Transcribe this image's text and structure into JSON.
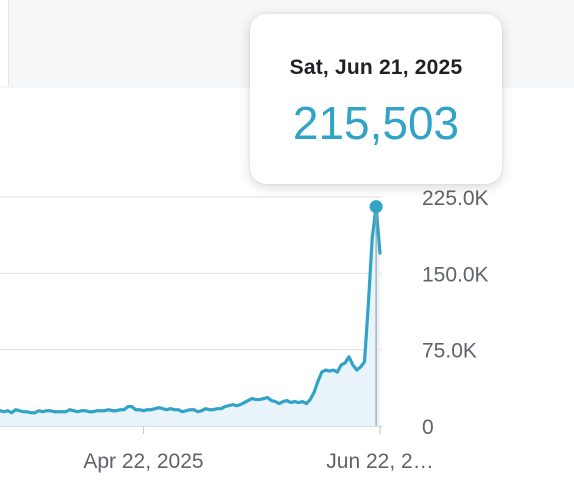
{
  "colors": {
    "series": "#30a3c6",
    "area_fill": "#e8f4fa",
    "grid": "#e0e0e0",
    "tick_text": "#5f6368",
    "tooltip_date": "#202124",
    "tooltip_value": "#30a3c6"
  },
  "tooltip": {
    "date": "Sat, Jun 21, 2025",
    "value": "215,503"
  },
  "chart_data": {
    "type": "area",
    "title": "",
    "xlabel": "",
    "ylabel": "",
    "grid": true,
    "y_axis_position": "right",
    "ylim": [
      0,
      225000
    ],
    "y_ticks": [
      {
        "value": 0,
        "label": "0"
      },
      {
        "value": 75000,
        "label": "75.0K"
      },
      {
        "value": 150000,
        "label": "150.0K"
      },
      {
        "value": 225000,
        "label": "225.0K"
      }
    ],
    "x_ticks": [
      {
        "date": "2025-04-22",
        "label": "Apr 22, 2025"
      },
      {
        "date": "2025-06-22",
        "label": "Jun 22, 2…"
      }
    ],
    "highlight": {
      "date": "2025-06-21",
      "value": 215503
    },
    "series": [
      {
        "x": [
          "2025-03-16",
          "2025-03-17",
          "2025-03-18",
          "2025-03-19",
          "2025-03-20",
          "2025-03-21",
          "2025-03-22",
          "2025-03-23",
          "2025-03-24",
          "2025-03-25",
          "2025-03-26",
          "2025-03-27",
          "2025-03-28",
          "2025-03-29",
          "2025-03-30",
          "2025-03-31",
          "2025-04-01",
          "2025-04-02",
          "2025-04-03",
          "2025-04-04",
          "2025-04-05",
          "2025-04-06",
          "2025-04-07",
          "2025-04-08",
          "2025-04-09",
          "2025-04-10",
          "2025-04-11",
          "2025-04-12",
          "2025-04-13",
          "2025-04-14",
          "2025-04-15",
          "2025-04-16",
          "2025-04-17",
          "2025-04-18",
          "2025-04-19",
          "2025-04-20",
          "2025-04-21",
          "2025-04-22",
          "2025-04-23",
          "2025-04-24",
          "2025-04-25",
          "2025-04-26",
          "2025-04-27",
          "2025-04-28",
          "2025-04-29",
          "2025-04-30",
          "2025-05-01",
          "2025-05-02",
          "2025-05-03",
          "2025-05-04",
          "2025-05-05",
          "2025-05-06",
          "2025-05-07",
          "2025-05-08",
          "2025-05-09",
          "2025-05-10",
          "2025-05-11",
          "2025-05-12",
          "2025-05-13",
          "2025-05-14",
          "2025-05-15",
          "2025-05-16",
          "2025-05-17",
          "2025-05-18",
          "2025-05-19",
          "2025-05-20",
          "2025-05-21",
          "2025-05-22",
          "2025-05-23",
          "2025-05-24",
          "2025-05-25",
          "2025-05-26",
          "2025-05-27",
          "2025-05-28",
          "2025-05-29",
          "2025-05-30",
          "2025-05-31",
          "2025-06-01",
          "2025-06-02",
          "2025-06-03",
          "2025-06-04",
          "2025-06-05",
          "2025-06-06",
          "2025-06-07",
          "2025-06-08",
          "2025-06-09",
          "2025-06-10",
          "2025-06-11",
          "2025-06-12",
          "2025-06-13",
          "2025-06-14",
          "2025-06-15",
          "2025-06-16",
          "2025-06-17",
          "2025-06-18",
          "2025-06-19",
          "2025-06-20",
          "2025-06-21",
          "2025-06-22"
        ],
        "values": [
          15000,
          14000,
          15000,
          13000,
          16000,
          15000,
          14000,
          14000,
          13000,
          13000,
          15000,
          14000,
          15000,
          15000,
          14000,
          14000,
          14000,
          14000,
          16000,
          15000,
          14000,
          15000,
          15000,
          14000,
          14000,
          15000,
          15000,
          15000,
          16000,
          15000,
          15000,
          16000,
          16000,
          19000,
          19000,
          16000,
          16000,
          15000,
          16000,
          16000,
          17000,
          18000,
          17000,
          16000,
          17000,
          16000,
          16000,
          14000,
          15000,
          16000,
          16000,
          14000,
          15000,
          17000,
          16000,
          16000,
          17000,
          17000,
          19000,
          20000,
          21000,
          20000,
          21000,
          23000,
          25000,
          27000,
          26000,
          26000,
          27000,
          28000,
          25000,
          24000,
          22000,
          24000,
          25000,
          23000,
          24000,
          23000,
          24000,
          22000,
          26000,
          33000,
          44000,
          53000,
          55000,
          54000,
          55000,
          53000,
          60000,
          62000,
          68000,
          60000,
          55000,
          58000,
          63000,
          120000,
          185000,
          215503,
          170000
        ]
      }
    ]
  }
}
